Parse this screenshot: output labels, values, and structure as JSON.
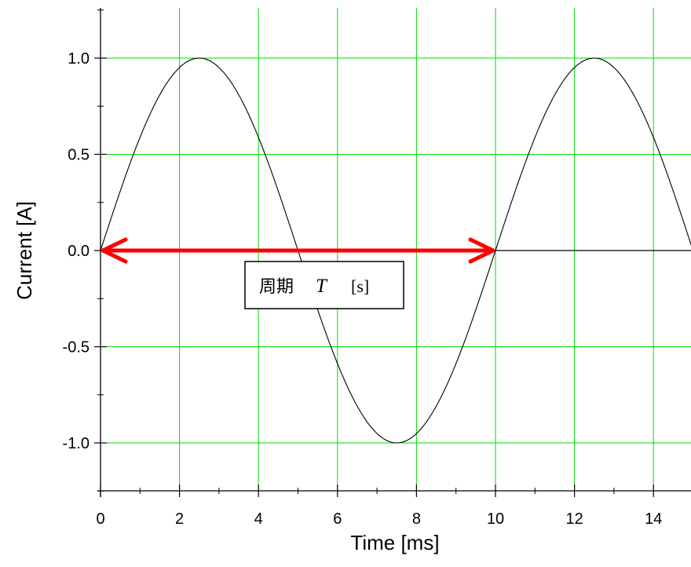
{
  "chart_data": {
    "type": "line",
    "title": "",
    "xlabel": "Time [ms]",
    "ylabel": "Current [A]",
    "xlim": [
      0,
      15
    ],
    "ylim": [
      -1.25,
      1.25
    ],
    "grid": true,
    "x_ticks": [
      0,
      2,
      4,
      6,
      8,
      10,
      12,
      14
    ],
    "x_tick_labels": [
      "0",
      "2",
      "4",
      "6",
      "8",
      "10",
      "12",
      "14"
    ],
    "y_ticks": [
      1.0,
      0.5,
      0.0,
      -0.5,
      -1.0
    ],
    "y_tick_labels": [
      "1.0",
      "0.5",
      "0.0",
      "-0.5",
      "-1.0"
    ],
    "series": [
      {
        "function": "sine",
        "amplitude": 1.0,
        "period": 10,
        "x": [
          0,
          1.25,
          2.5,
          3.75,
          5,
          6.25,
          7.5,
          8.75,
          10,
          11.25,
          12.5,
          13.75,
          15
        ],
        "values": [
          0,
          0.707,
          1.0,
          0.707,
          0,
          -0.707,
          -1.0,
          -0.707,
          0,
          0.707,
          1.0,
          0.707,
          0
        ]
      }
    ],
    "annotation": {
      "label_prefix": "周期",
      "label_symbol": "T",
      "label_unit": "[s]",
      "arrow_from": 0,
      "arrow_to": 10,
      "arrow_y": 0,
      "arrow_color": "#ff0000"
    },
    "colors": {
      "grid": "#00dd00",
      "curve": "#000000",
      "axis": "#000000"
    }
  }
}
